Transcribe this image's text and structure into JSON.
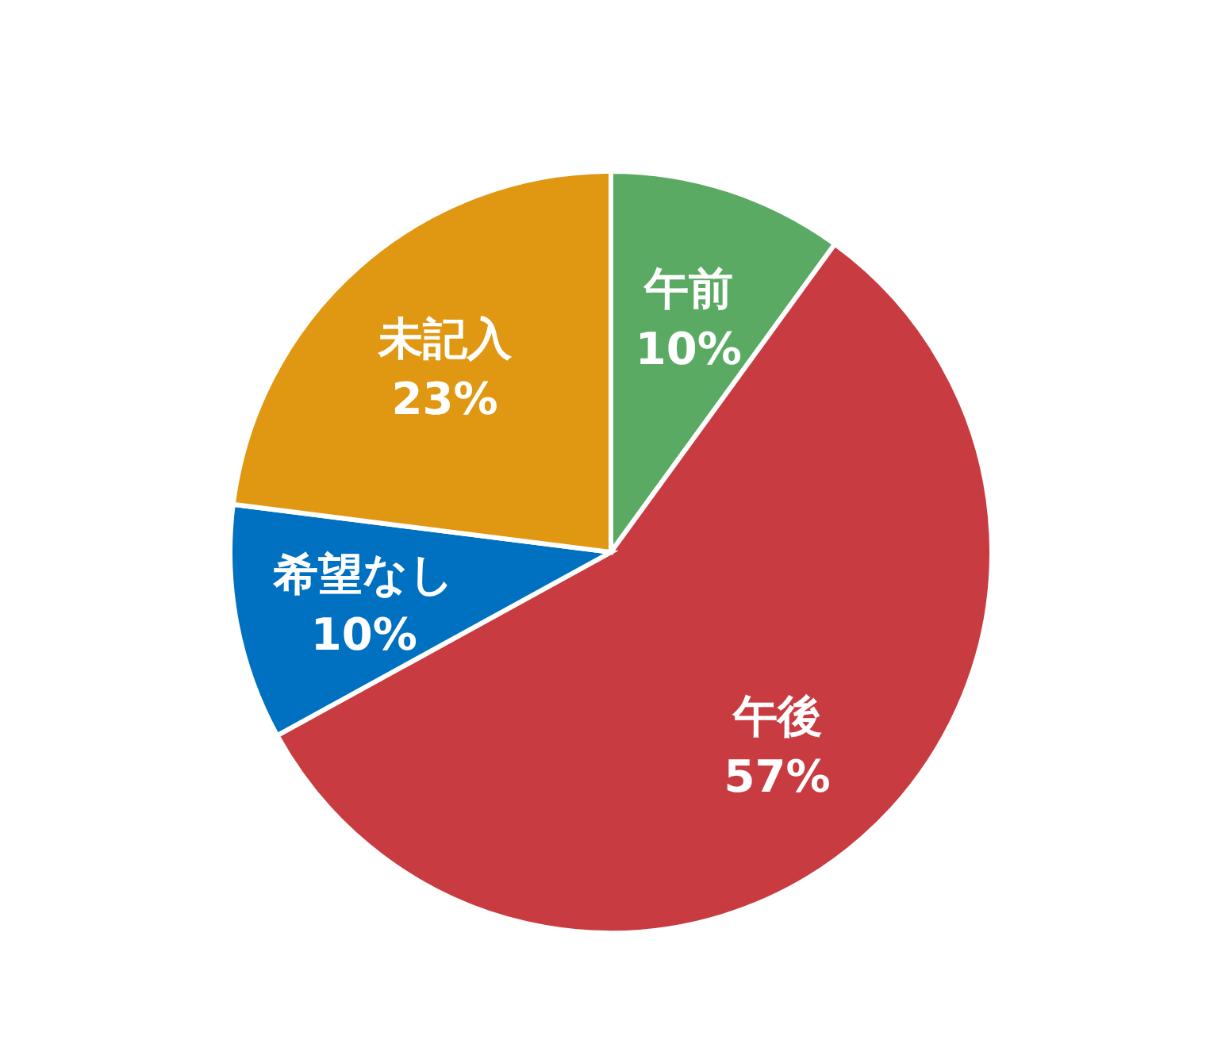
{
  "chart_data": {
    "type": "pie",
    "categories": [
      "午前",
      "午後",
      "希望なし",
      "未記入"
    ],
    "values": [
      10,
      57,
      10,
      23
    ],
    "colors": [
      "#5aaa64",
      "#c83c41",
      "#0070c0",
      "#e09712"
    ],
    "value_labels": [
      "10%",
      "57%",
      "10%",
      "23%"
    ]
  }
}
